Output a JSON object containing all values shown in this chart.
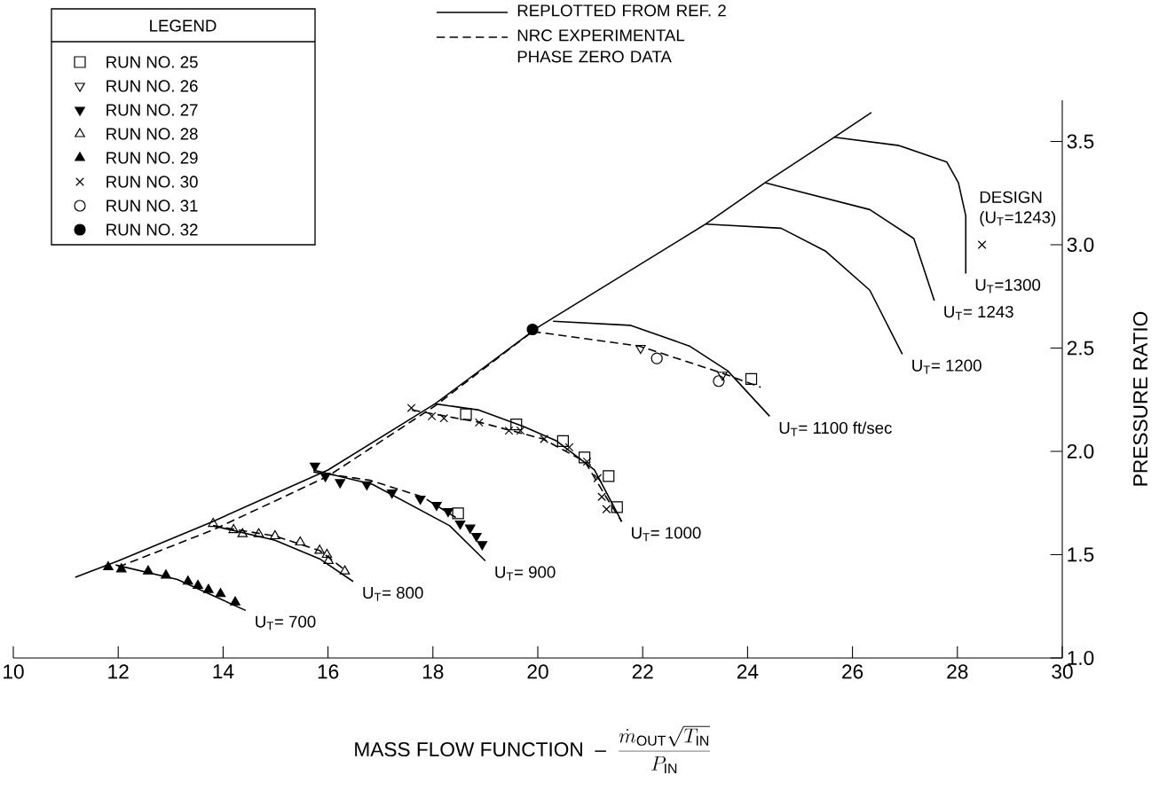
{
  "chart_data": {
    "type": "line",
    "xlabel": "\\mbox{MASS FLOW FUNCTION \\ -- \\ }\\frac{\\dot{m}_{\\mathrm{OUT}}\\sqrt{T_{\\mathrm{IN}}}}{P_{\\mathrm{IN}}}",
    "ylabel": "PRESSURE RATIO",
    "legend_title": "LEGEND",
    "legend": "top left",
    "xlim": [
      10,
      30
    ],
    "ylim": [
      1.0,
      3.7
    ],
    "xticks": [
      10,
      12,
      14,
      16,
      18,
      20,
      22,
      24,
      26,
      28,
      30
    ],
    "yticks": [
      {
        "value": 1.0,
        "label": "1.0"
      },
      {
        "value": 1.5,
        "label": "1.5"
      },
      {
        "value": 2.0,
        "label": "2.0"
      },
      {
        "value": 2.5,
        "label": "2.5"
      },
      {
        "value": 3.0,
        "label": "3.0"
      },
      {
        "value": 3.5,
        "label": "3.5"
      }
    ],
    "series": [
      {
        "name": "REPLOTTED FROM REF. 2",
        "type": "line",
        "line_style": "solid",
        "color": "#000000",
        "x": [
          11.18,
          12.0,
          13.8,
          16.0,
          18.04,
          20.0,
          23.2,
          24.33,
          25.65,
          26.36
        ],
        "values": [
          1.39,
          1.47,
          1.66,
          1.91,
          2.23,
          2.6,
          3.1,
          3.3,
          3.52,
          3.64
        ]
      },
      {
        "type": "line",
        "line_style": "solid",
        "color": "#000000",
        "x": [
          11.95,
          13.13,
          14.43
        ],
        "values": [
          1.45,
          1.38,
          1.23
        ]
      },
      {
        "type": "line",
        "line_style": "solid",
        "color": "#000000",
        "x": [
          13.81,
          14.99,
          15.84,
          16.48
        ],
        "values": [
          1.64,
          1.57,
          1.48,
          1.37
        ]
      },
      {
        "type": "line",
        "line_style": "solid",
        "color": "#000000",
        "x": [
          15.72,
          16.85,
          18.32,
          19.0
        ],
        "values": [
          1.91,
          1.84,
          1.64,
          1.47
        ]
      },
      {
        "type": "line",
        "line_style": "solid",
        "color": "#000000",
        "x": [
          18.04,
          18.88,
          19.73,
          20.36,
          21.08,
          21.6
        ],
        "values": [
          2.23,
          2.2,
          2.12,
          2.05,
          1.91,
          1.66
        ]
      },
      {
        "type": "line",
        "line_style": "solid",
        "color": "#000000",
        "x": [
          20.29,
          21.76,
          22.89,
          23.62,
          24.42
        ],
        "values": [
          2.63,
          2.61,
          2.51,
          2.39,
          2.17
        ]
      },
      {
        "type": "line",
        "line_style": "solid",
        "color": "#000000",
        "x": [
          23.2,
          24.64,
          25.48,
          26.33,
          26.95
        ],
        "values": [
          3.1,
          3.08,
          2.97,
          2.78,
          2.47
        ]
      },
      {
        "type": "line",
        "line_style": "solid",
        "color": "#000000",
        "x": [
          24.33,
          24.64,
          26.33,
          27.17,
          27.56
        ],
        "values": [
          3.3,
          3.28,
          3.17,
          3.03,
          2.73
        ]
      },
      {
        "type": "line",
        "line_style": "solid",
        "color": "#000000",
        "x": [
          25.65,
          26.89,
          27.8,
          28.02,
          28.16,
          28.16
        ],
        "values": [
          3.52,
          3.48,
          3.4,
          3.3,
          3.14,
          2.86
        ]
      },
      {
        "name": "NRC EXPERIMENTAL PHASE ZERO DATA",
        "type": "line",
        "line_style": "dashed",
        "color": "#000000",
        "x": [
          12.0,
          13.81,
          16.0,
          18.04,
          19.9
        ],
        "values": [
          1.44,
          1.62,
          1.88,
          2.22,
          2.58
        ]
      },
      {
        "type": "line",
        "line_style": "dashed",
        "color": "#000000",
        "x": [
          13.81,
          14.99,
          15.84,
          16.3
        ],
        "values": [
          1.64,
          1.59,
          1.52,
          1.43
        ]
      },
      {
        "type": "line",
        "line_style": "dashed",
        "color": "#000000",
        "x": [
          15.72,
          16.8,
          17.8,
          18.5
        ],
        "values": [
          1.9,
          1.86,
          1.78,
          1.67
        ]
      },
      {
        "type": "line",
        "line_style": "dashed",
        "color": "#000000",
        "x": [
          17.6,
          18.9,
          20.1,
          20.9,
          21.3,
          21.6
        ],
        "values": [
          2.2,
          2.14,
          2.06,
          1.95,
          1.78,
          1.66
        ]
      },
      {
        "type": "line",
        "line_style": "dashed",
        "color": "#000000",
        "x": [
          19.9,
          21.93,
          23.5,
          24.25
        ],
        "values": [
          2.58,
          2.51,
          2.38,
          2.31
        ]
      },
      {
        "name": "RUN NO. 25",
        "type": "scatter",
        "marker": "square",
        "color": "#000000",
        "x": [
          18.48,
          18.63,
          19.59,
          20.48,
          20.89,
          21.35,
          21.51,
          24.07
        ],
        "values": [
          1.7,
          2.18,
          2.13,
          2.05,
          1.97,
          1.88,
          1.73,
          2.35
        ]
      },
      {
        "name": "RUN NO. 26",
        "type": "scatter",
        "marker": "triangle-down",
        "color": "#000000",
        "x": [
          21.96,
          23.52
        ],
        "values": [
          2.5,
          2.37
        ]
      },
      {
        "name": "RUN NO. 27",
        "type": "scatter",
        "marker": "triangle-down-filled",
        "color": "#000000",
        "x": [
          15.75,
          15.95,
          16.23,
          16.74,
          17.22,
          17.76,
          18.07,
          18.29,
          18.52,
          18.71,
          18.83,
          18.94
        ],
        "values": [
          1.93,
          1.88,
          1.85,
          1.84,
          1.8,
          1.77,
          1.74,
          1.71,
          1.65,
          1.63,
          1.59,
          1.55
        ]
      },
      {
        "name": "RUN NO. 28",
        "type": "scatter",
        "marker": "triangle",
        "color": "#000000",
        "x": [
          13.81,
          14.2,
          14.37,
          14.68,
          14.99,
          15.47,
          15.84,
          15.98,
          16.01,
          16.32
        ],
        "values": [
          1.65,
          1.62,
          1.6,
          1.6,
          1.59,
          1.56,
          1.52,
          1.5,
          1.47,
          1.42
        ]
      },
      {
        "name": "RUN NO. 29",
        "type": "scatter",
        "marker": "triangle-filled",
        "color": "#000000",
        "x": [
          11.81,
          12.06,
          12.57,
          12.91,
          13.33,
          13.52,
          13.72,
          13.95,
          14.23
        ],
        "values": [
          1.44,
          1.43,
          1.42,
          1.4,
          1.37,
          1.35,
          1.33,
          1.31,
          1.27
        ]
      },
      {
        "name": "RUN NO. 30",
        "type": "scatter",
        "marker": "cross",
        "color": "#000000",
        "x": [
          17.59,
          17.98,
          18.21,
          18.88,
          19.45,
          19.67,
          20.12,
          20.6,
          20.94,
          21.14,
          21.22,
          21.31
        ],
        "values": [
          2.21,
          2.17,
          2.16,
          2.14,
          2.1,
          2.1,
          2.06,
          2.02,
          1.95,
          1.87,
          1.78,
          1.72
        ]
      },
      {
        "name": "RUN NO. 31",
        "type": "scatter",
        "marker": "circle",
        "color": "#000000",
        "x": [
          22.27,
          23.45
        ],
        "values": [
          2.45,
          2.34
        ]
      },
      {
        "name": "RUN NO. 32",
        "type": "scatter",
        "marker": "circle-filled",
        "color": "#000000",
        "x": [
          19.9
        ],
        "values": [
          2.59
        ]
      },
      {
        "type": "scatter",
        "marker": "cross",
        "color": "#000000",
        "x": [
          28.47
        ],
        "values": [
          3.0
        ]
      }
    ],
    "annotations": [
      {
        "text": "U$_{T}$= 700",
        "x": 14.43,
        "y": 1.23
      },
      {
        "text": "U$_{T}$= 800",
        "x": 16.48,
        "y": 1.37
      },
      {
        "text": "U$_{T}$= 900",
        "x": 19.0,
        "y": 1.47
      },
      {
        "text": "U$_{T}$= 1000",
        "x": 21.6,
        "y": 1.66
      },
      {
        "text": "U$_{T}$= 1100  ft/sec",
        "x": 24.42,
        "y": 2.17
      },
      {
        "text": "U$_{T}$= 1200",
        "x": 26.95,
        "y": 2.47
      },
      {
        "text": "U$_{T}$= 1243",
        "x": 27.56,
        "y": 2.73
      },
      {
        "text": "U$_{T}$=1300",
        "x": 28.16,
        "y": 2.86
      },
      {
        "text": "DESIGN (U$_{T}$=1243)",
        "x": 28.47,
        "y": 3.0
      }
    ]
  }
}
